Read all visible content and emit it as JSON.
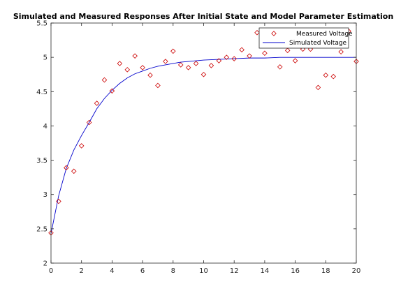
{
  "chart_data": {
    "type": "scatter",
    "title": "Simulated and Measured Responses After Initial State and Model Parameter Estimation",
    "xlabel": "",
    "ylabel": "",
    "xlim": [
      0,
      20
    ],
    "ylim": [
      2,
      5.5
    ],
    "xticks": [
      0,
      2,
      4,
      6,
      8,
      10,
      12,
      14,
      16,
      18,
      20
    ],
    "yticks": [
      2,
      2.5,
      3,
      3.5,
      4,
      4.5,
      5,
      5.5
    ],
    "xtick_labels": [
      "0",
      "2",
      "4",
      "6",
      "8",
      "10",
      "12",
      "14",
      "16",
      "18",
      "20"
    ],
    "ytick_labels": [
      "2",
      "2.5",
      "3",
      "3.5",
      "4",
      "4.5",
      "5",
      "5.5"
    ],
    "grid": false,
    "legend_position": "top-right",
    "series": [
      {
        "name": "Measured Voltage",
        "type": "scatter",
        "marker": "diamond",
        "color": "#cc0000",
        "x": [
          0,
          0.5,
          1,
          1.5,
          2,
          2.5,
          3,
          3.5,
          4,
          4.5,
          5,
          5.5,
          6,
          6.5,
          7,
          7.5,
          8,
          8.5,
          9,
          9.5,
          10,
          10.5,
          11,
          11.5,
          12,
          12.5,
          13,
          13.5,
          14,
          14.5,
          15,
          15.5,
          16,
          16.5,
          17,
          17.5,
          18,
          18.5,
          19,
          19.5,
          20
        ],
        "y": [
          2.44,
          2.9,
          3.39,
          3.34,
          3.71,
          4.05,
          4.33,
          4.67,
          4.51,
          4.91,
          4.82,
          5.02,
          4.85,
          4.74,
          4.59,
          4.94,
          5.09,
          4.89,
          4.85,
          4.91,
          4.75,
          4.88,
          4.95,
          5.0,
          4.98,
          5.11,
          5.02,
          5.36,
          5.06,
          5.33,
          4.86,
          5.1,
          4.95,
          5.12,
          5.12,
          4.56,
          4.74,
          4.72,
          5.08,
          5.38,
          4.94
        ]
      },
      {
        "name": "Simulated Voltage",
        "type": "line",
        "color": "#0000cc",
        "x": [
          0,
          0.5,
          1,
          1.5,
          2,
          2.5,
          3,
          3.5,
          4,
          4.5,
          5,
          5.5,
          6,
          6.5,
          7,
          7.5,
          8,
          8.5,
          9,
          9.5,
          10,
          11,
          12,
          13,
          14,
          15,
          16,
          17,
          18,
          19,
          20
        ],
        "y": [
          2.43,
          2.98,
          3.38,
          3.65,
          3.86,
          4.05,
          4.25,
          4.4,
          4.52,
          4.62,
          4.7,
          4.76,
          4.8,
          4.84,
          4.87,
          4.89,
          4.91,
          4.93,
          4.94,
          4.95,
          4.96,
          4.97,
          4.98,
          4.99,
          4.99,
          5.0,
          5.0,
          5.0,
          5.0,
          5.0,
          5.0
        ]
      }
    ]
  }
}
